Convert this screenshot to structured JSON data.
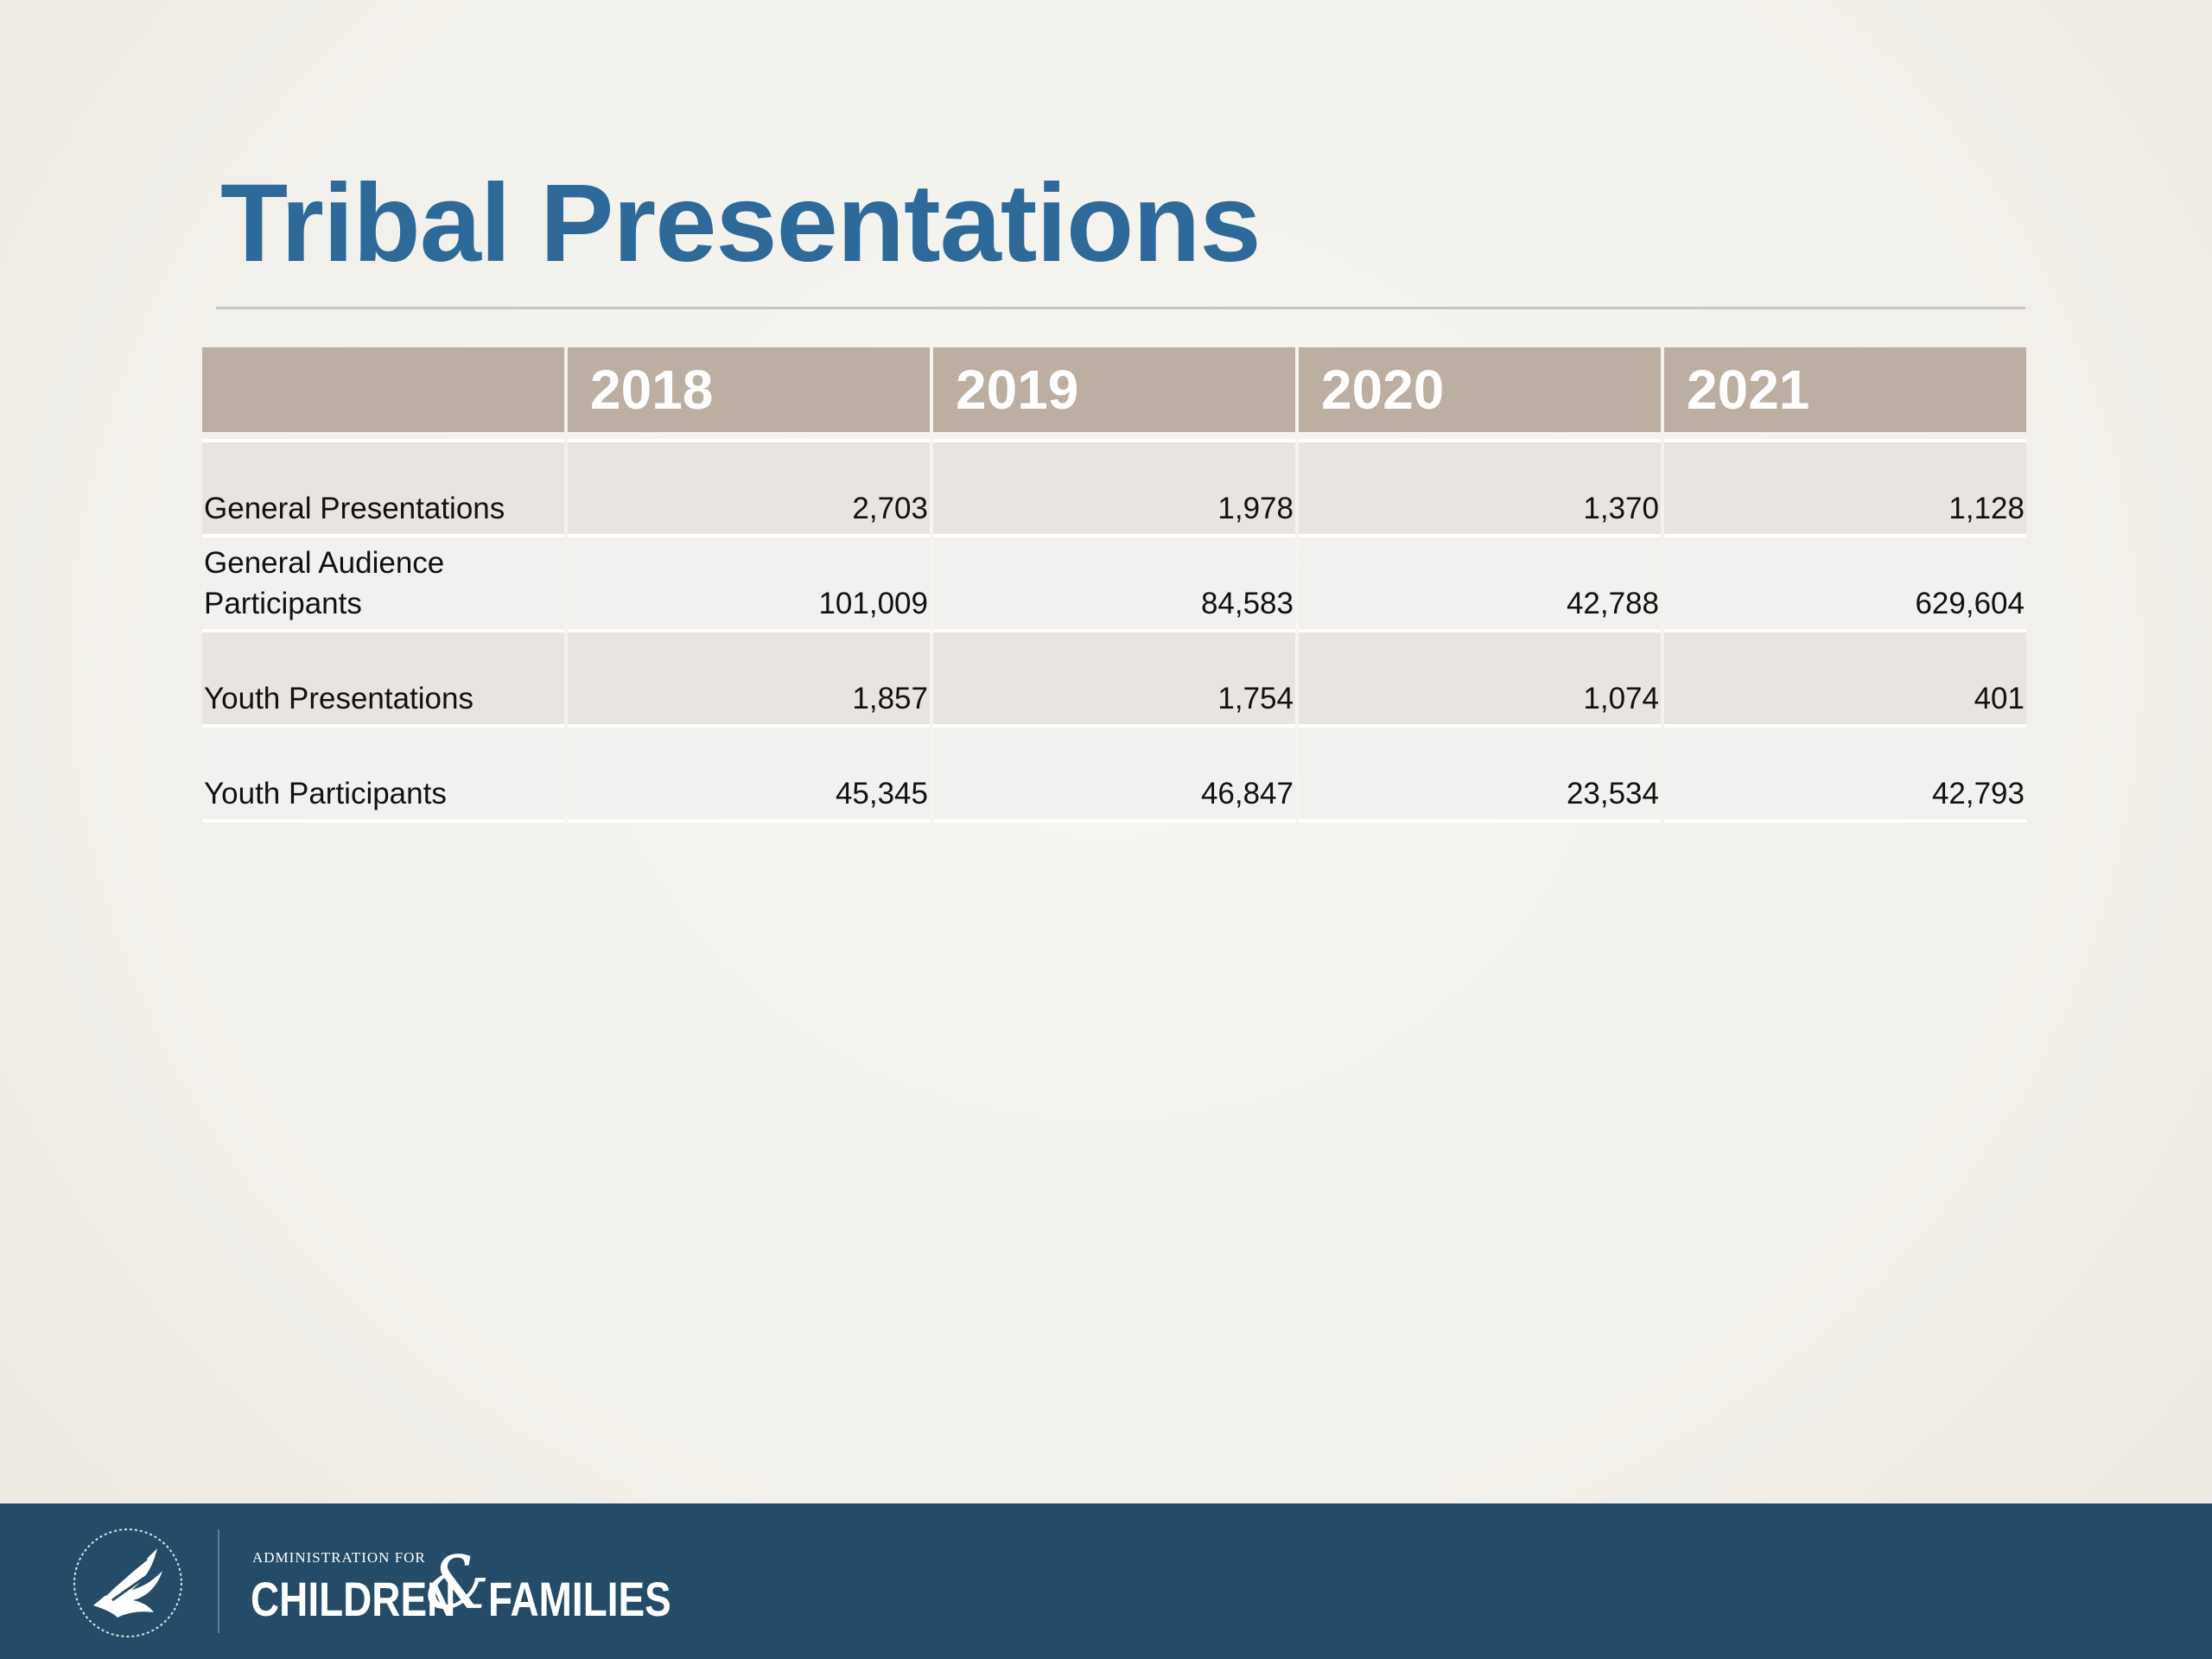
{
  "slide": {
    "title": "Tribal Presentations"
  },
  "table": {
    "corner_label": "",
    "columns": [
      "2018",
      "2019",
      "2020",
      "2021"
    ],
    "rows": [
      {
        "label": "General Presentations",
        "values": [
          "2,703",
          "1,978",
          "1,370",
          "1,128"
        ]
      },
      {
        "label": "General Audience Participants",
        "values": [
          "101,009",
          "84,583",
          "42,788",
          "629,604"
        ]
      },
      {
        "label": "Youth Presentations",
        "values": [
          "1,857",
          "1,754",
          "1,074",
          "401"
        ]
      },
      {
        "label": "Youth Participants",
        "values": [
          "45,345",
          "46,847",
          "23,534",
          "42,793"
        ]
      }
    ]
  },
  "footer": {
    "org_prefix": "ADMINISTRATION FOR",
    "org_word1": "CHILDREN",
    "org_amp": "&",
    "org_word2": "FAMILIES",
    "seal_icon": "hhs-eagle-seal-icon",
    "colors": {
      "bar": "#244b67",
      "title": "#2d6a9a",
      "header_fill": "#bcaea1"
    }
  }
}
